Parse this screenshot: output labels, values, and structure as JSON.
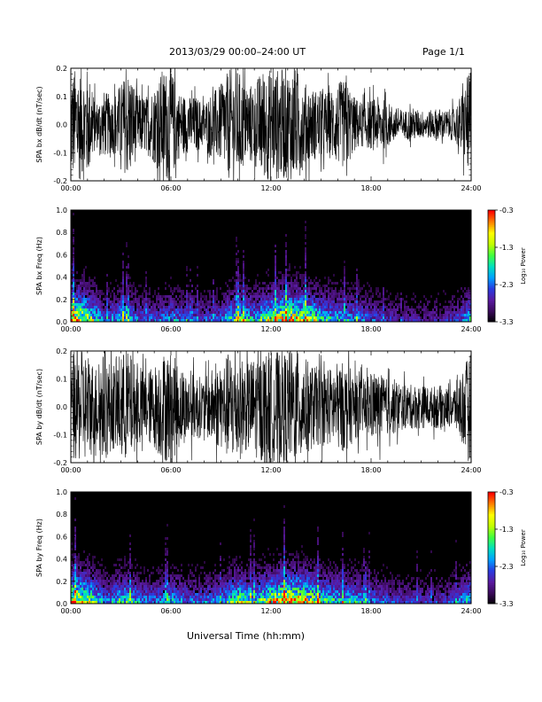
{
  "header": {
    "title": "2013/03/29  00:00–24:00 UT",
    "page": "Page 1/1"
  },
  "footer": {
    "xlabel": "Universal Time (hh:mm)"
  },
  "colorbar": {
    "ticks": [
      "-0.3",
      "-1.3",
      "-2.3",
      "-3.3"
    ],
    "tick_values": [
      -0.3,
      -1.3,
      -2.3,
      -3.3
    ],
    "range": [
      -3.3,
      -0.3
    ],
    "label": "Log₁₀ Power",
    "colors": [
      "#000000",
      "#3a0a5a",
      "#5a1aa0",
      "#2a3ae0",
      "#00a0ff",
      "#00e0c0",
      "#40ff40",
      "#c0ff00",
      "#ffff00",
      "#ff8000",
      "#ff0000"
    ]
  },
  "chart_data": [
    {
      "type": "line",
      "ylabel": "SPA bx dB/dt (nT/sec)",
      "xlim": [
        0,
        24
      ],
      "ylim": [
        -0.2,
        0.2
      ],
      "xticks": [
        "00:00",
        "06:00",
        "12:00",
        "18:00",
        "24:00"
      ],
      "yticks": [
        "0.2",
        "0.1",
        "0.0",
        "-0.1",
        "-0.2"
      ],
      "ytick_values": [
        0.2,
        0.1,
        0.0,
        -0.1,
        -0.2
      ],
      "envelope_hours": [
        0,
        0.5,
        1,
        1.5,
        2,
        2.5,
        3,
        3.5,
        4,
        4.5,
        5,
        5.5,
        6,
        6.5,
        7,
        7.5,
        8,
        8.5,
        9,
        9.5,
        10,
        10.5,
        11,
        11.5,
        12,
        12.5,
        13,
        13.5,
        14,
        14.5,
        15,
        15.5,
        16,
        16.5,
        17,
        17.5,
        18,
        18.5,
        19,
        19.5,
        20,
        20.5,
        21,
        21.5,
        22,
        22.5,
        23,
        23.5,
        24
      ],
      "envelope_amplitude": [
        0.2,
        0.2,
        0.2,
        0.08,
        0.12,
        0.1,
        0.15,
        0.2,
        0.11,
        0.1,
        0.14,
        0.2,
        0.2,
        0.12,
        0.1,
        0.1,
        0.08,
        0.12,
        0.14,
        0.2,
        0.2,
        0.14,
        0.15,
        0.2,
        0.2,
        0.2,
        0.2,
        0.2,
        0.15,
        0.13,
        0.12,
        0.12,
        0.15,
        0.16,
        0.1,
        0.08,
        0.09,
        0.1,
        0.08,
        0.06,
        0.05,
        0.06,
        0.05,
        0.05,
        0.06,
        0.05,
        0.06,
        0.12,
        0.2
      ]
    },
    {
      "type": "heatmap",
      "ylabel": "SPA bx Freq (Hz)",
      "xlim": [
        0,
        24
      ],
      "ylim": [
        0,
        1.0
      ],
      "xticks": [
        "00:00",
        "06:00",
        "12:00",
        "18:00",
        "24:00"
      ],
      "yticks": [
        "1.0",
        "0.8",
        "0.6",
        "0.4",
        "0.2",
        "0.0"
      ],
      "ytick_values": [
        1.0,
        0.8,
        0.6,
        0.4,
        0.2,
        0.0
      ],
      "activity_hours": [
        0,
        1,
        2,
        3,
        4,
        5,
        6,
        7,
        8,
        9,
        10,
        11,
        12,
        13,
        14,
        15,
        16,
        17,
        18,
        19,
        20,
        21,
        22,
        23,
        24
      ],
      "activity_level": [
        0.9,
        0.7,
        0.3,
        0.5,
        0.35,
        0.3,
        0.4,
        0.3,
        0.3,
        0.35,
        0.6,
        0.45,
        0.7,
        0.85,
        0.75,
        0.5,
        0.45,
        0.4,
        0.3,
        0.25,
        0.2,
        0.2,
        0.2,
        0.25,
        0.5
      ]
    },
    {
      "type": "line",
      "ylabel": "SPA by dB/dt (nT/sec)",
      "xlim": [
        0,
        24
      ],
      "ylim": [
        -0.2,
        0.2
      ],
      "xticks": [
        "00:00",
        "06:00",
        "12:00",
        "18:00",
        "24:00"
      ],
      "yticks": [
        "0.2",
        "0.1",
        "0.0",
        "-0.1",
        "-0.2"
      ],
      "ytick_values": [
        0.2,
        0.1,
        0.0,
        -0.1,
        -0.2
      ],
      "envelope_hours": [
        0,
        0.5,
        1,
        1.5,
        2,
        2.5,
        3,
        3.5,
        4,
        4.5,
        5,
        5.5,
        6,
        6.5,
        7,
        7.5,
        8,
        8.5,
        9,
        9.5,
        10,
        10.5,
        11,
        11.5,
        12,
        12.5,
        13,
        13.5,
        14,
        14.5,
        15,
        15.5,
        16,
        16.5,
        17,
        17.5,
        18,
        18.5,
        19,
        19.5,
        20,
        20.5,
        21,
        21.5,
        22,
        22.5,
        23,
        23.5,
        24
      ],
      "envelope_amplitude": [
        0.2,
        0.2,
        0.2,
        0.15,
        0.2,
        0.15,
        0.2,
        0.2,
        0.14,
        0.13,
        0.15,
        0.2,
        0.2,
        0.15,
        0.12,
        0.12,
        0.1,
        0.14,
        0.15,
        0.2,
        0.2,
        0.16,
        0.18,
        0.2,
        0.2,
        0.2,
        0.2,
        0.2,
        0.18,
        0.15,
        0.14,
        0.14,
        0.16,
        0.16,
        0.12,
        0.1,
        0.12,
        0.12,
        0.1,
        0.1,
        0.08,
        0.08,
        0.08,
        0.07,
        0.08,
        0.07,
        0.08,
        0.14,
        0.2
      ]
    },
    {
      "type": "heatmap",
      "ylabel": "SPA by Freq (Hz)",
      "xlim": [
        0,
        24
      ],
      "ylim": [
        0,
        1.0
      ],
      "xticks": [
        "00:00",
        "06:00",
        "12:00",
        "18:00",
        "24:00"
      ],
      "yticks": [
        "1.0",
        "0.8",
        "0.6",
        "0.4",
        "0.2",
        "0.0"
      ],
      "ytick_values": [
        1.0,
        0.8,
        0.6,
        0.4,
        0.2,
        0.0
      ],
      "activity_hours": [
        0,
        1,
        2,
        3,
        4,
        5,
        6,
        7,
        8,
        9,
        10,
        11,
        12,
        13,
        14,
        15,
        16,
        17,
        18,
        19,
        20,
        21,
        22,
        23,
        24
      ],
      "activity_level": [
        0.9,
        0.7,
        0.35,
        0.55,
        0.4,
        0.35,
        0.45,
        0.35,
        0.35,
        0.4,
        0.65,
        0.5,
        0.75,
        0.9,
        0.8,
        0.55,
        0.5,
        0.45,
        0.35,
        0.3,
        0.25,
        0.25,
        0.25,
        0.3,
        0.55
      ]
    }
  ]
}
